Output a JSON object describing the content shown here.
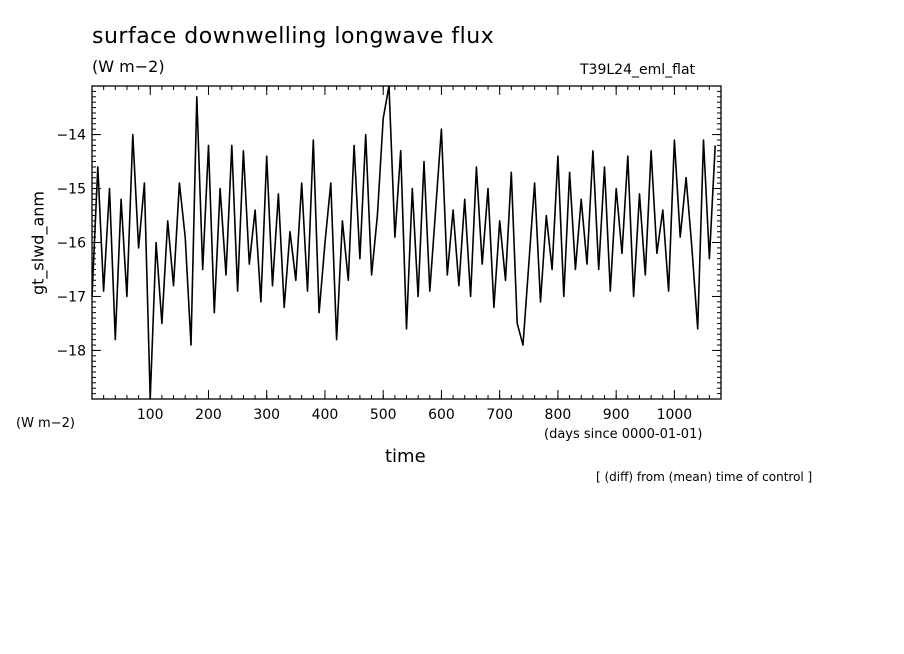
{
  "figure": {
    "title": "surface downwelling longwave flux",
    "units": "(W m−2)",
    "run_label": "T39L24_eml_flat",
    "y_units": "(W m−2)",
    "x_units": "(days since 0000-01-01)",
    "note": "[ (diff) from (mean) time of control ]"
  },
  "chart_data": {
    "type": "line",
    "xlabel": "time",
    "ylabel": "gt_slwd_anm",
    "xlim": [
      0,
      1080
    ],
    "ylim": [
      -18.9,
      -13.1
    ],
    "xticks": [
      100,
      200,
      300,
      400,
      500,
      600,
      700,
      800,
      900,
      1000
    ],
    "yticks": [
      -18,
      -17,
      -16,
      -15,
      -14
    ],
    "grid": false,
    "color": "#000000",
    "series": [
      {
        "x": [
          0,
          10,
          20,
          30,
          40,
          50,
          60,
          70,
          80,
          90,
          100,
          110,
          120,
          130,
          140,
          150,
          160,
          170,
          180,
          190,
          200,
          210,
          220,
          230,
          240,
          250,
          260,
          270,
          280,
          290,
          300,
          310,
          320,
          330,
          340,
          350,
          360,
          370,
          380,
          390,
          400,
          410,
          420,
          430,
          440,
          450,
          460,
          470,
          480,
          490,
          500,
          510,
          520,
          530,
          540,
          550,
          560,
          570,
          580,
          590,
          600,
          610,
          620,
          630,
          640,
          650,
          660,
          670,
          680,
          690,
          700,
          710,
          720,
          730,
          740,
          750,
          760,
          770,
          780,
          790,
          800,
          810,
          820,
          830,
          840,
          850,
          860,
          870,
          880,
          890,
          900,
          910,
          920,
          930,
          940,
          950,
          960,
          970,
          980,
          990,
          1000,
          1010,
          1020,
          1030,
          1040,
          1050,
          1060,
          1070
        ],
        "values": [
          -17.0,
          -14.6,
          -16.9,
          -15.0,
          -17.8,
          -15.2,
          -17.0,
          -14.0,
          -16.1,
          -14.9,
          -18.9,
          -16.0,
          -17.5,
          -15.6,
          -16.8,
          -14.9,
          -15.9,
          -17.9,
          -13.3,
          -16.5,
          -14.2,
          -17.3,
          -15.0,
          -16.6,
          -14.2,
          -16.9,
          -14.3,
          -16.4,
          -15.4,
          -17.1,
          -14.4,
          -16.8,
          -15.1,
          -17.2,
          -15.8,
          -16.7,
          -14.9,
          -16.9,
          -14.1,
          -17.3,
          -16.0,
          -14.9,
          -17.8,
          -15.6,
          -16.7,
          -14.2,
          -16.3,
          -14.0,
          -16.6,
          -15.5,
          -13.7,
          -13.1,
          -15.9,
          -14.3,
          -17.6,
          -15.0,
          -17.0,
          -14.5,
          -16.9,
          -15.4,
          -13.9,
          -16.6,
          -15.4,
          -16.8,
          -15.2,
          -17.0,
          -14.6,
          -16.4,
          -15.0,
          -17.2,
          -15.6,
          -16.7,
          -14.7,
          -17.5,
          -17.9,
          -16.4,
          -14.9,
          -17.1,
          -15.5,
          -16.5,
          -14.4,
          -17.0,
          -14.7,
          -16.5,
          -15.2,
          -16.4,
          -14.3,
          -16.5,
          -14.6,
          -16.9,
          -15.0,
          -16.2,
          -14.4,
          -17.0,
          -15.1,
          -16.6,
          -14.3,
          -16.2,
          -15.4,
          -16.9,
          -14.1,
          -15.9,
          -14.8,
          -16.1,
          -17.6,
          -14.1,
          -16.3,
          -14.2
        ]
      }
    ]
  }
}
